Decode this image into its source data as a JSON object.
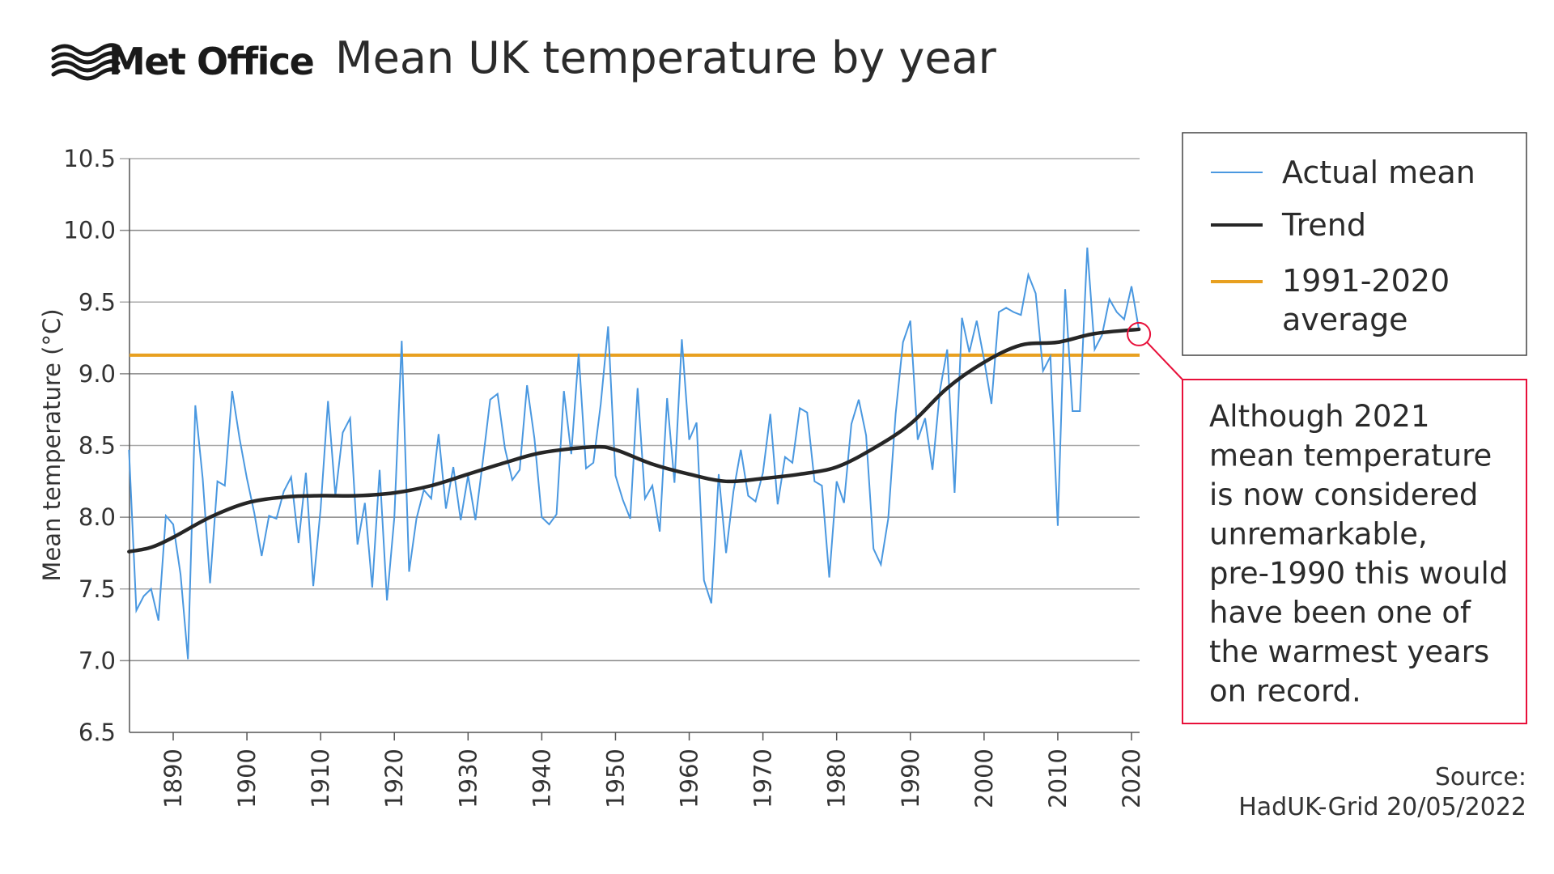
{
  "header": {
    "logo_text": "Met Office",
    "title": "Mean UK temperature by year"
  },
  "chart_data": {
    "type": "line",
    "title": "Mean UK temperature by year",
    "ylabel": "Mean temperature (°C)",
    "xlabel": "",
    "ylim": [
      6.5,
      10.5
    ],
    "xlim": [
      1884,
      2021
    ],
    "yticks": [
      "6.5",
      "7.0",
      "7.5",
      "8.0",
      "8.5",
      "9.0",
      "9.5",
      "10.0",
      "10.5"
    ],
    "xticks": [
      "1890",
      "1900",
      "1910",
      "1920",
      "1930",
      "1940",
      "1950",
      "1960",
      "1970",
      "1980",
      "1990",
      "2000",
      "2010",
      "2020"
    ],
    "grid": "horizontal",
    "legend_position": "right",
    "series": [
      {
        "name": "Actual mean",
        "color": "#4a98e0",
        "start_year": 1884,
        "values": [
          8.47,
          7.35,
          7.45,
          7.5,
          7.28,
          8.01,
          7.95,
          7.6,
          7.01,
          8.78,
          8.27,
          7.54,
          8.25,
          8.22,
          8.88,
          8.55,
          8.27,
          8.03,
          7.73,
          8.01,
          7.99,
          8.18,
          8.28,
          7.82,
          8.31,
          7.52,
          8.06,
          8.81,
          8.15,
          8.59,
          8.69,
          7.81,
          8.1,
          7.51,
          8.33,
          7.42,
          8.0,
          9.23,
          7.62,
          7.99,
          8.19,
          8.13,
          8.58,
          8.06,
          8.35,
          7.98,
          8.29,
          7.98,
          8.39,
          8.82,
          8.86,
          8.48,
          8.26,
          8.33,
          8.92,
          8.55,
          8.0,
          7.95,
          8.02,
          8.88,
          8.44,
          9.14,
          8.34,
          8.38,
          8.79,
          9.33,
          8.29,
          8.12,
          7.99,
          8.9,
          8.13,
          8.22,
          7.9,
          8.83,
          8.24,
          9.24,
          8.54,
          8.66,
          7.56,
          7.4,
          8.3,
          7.75,
          8.18,
          8.47,
          8.15,
          8.11,
          8.31,
          8.72,
          8.09,
          8.42,
          8.38,
          8.76,
          8.73,
          8.25,
          8.22,
          7.58,
          8.25,
          8.1,
          8.65,
          8.82,
          8.57,
          7.78,
          7.67,
          7.99,
          8.72,
          9.22,
          9.37,
          8.54,
          8.69,
          8.33,
          8.88,
          9.17,
          8.17,
          9.39,
          9.15,
          9.37,
          9.1,
          8.79,
          9.43,
          9.46,
          9.43,
          9.41,
          9.69,
          9.56,
          9.02,
          9.12,
          7.94,
          9.59,
          8.74,
          8.74,
          9.88,
          9.17,
          9.27,
          9.52,
          9.43,
          9.38,
          9.61,
          9.31
        ]
      },
      {
        "name": "Trend",
        "color": "#262626",
        "points": [
          [
            1884,
            7.76
          ],
          [
            1887,
            7.79
          ],
          [
            1890,
            7.86
          ],
          [
            1895,
            8.0
          ],
          [
            1900,
            8.1
          ],
          [
            1905,
            8.14
          ],
          [
            1910,
            8.15
          ],
          [
            1915,
            8.15
          ],
          [
            1920,
            8.17
          ],
          [
            1925,
            8.22
          ],
          [
            1930,
            8.3
          ],
          [
            1935,
            8.38
          ],
          [
            1940,
            8.45
          ],
          [
            1947,
            8.49
          ],
          [
            1950,
            8.47
          ],
          [
            1955,
            8.37
          ],
          [
            1960,
            8.3
          ],
          [
            1965,
            8.25
          ],
          [
            1970,
            8.27
          ],
          [
            1975,
            8.3
          ],
          [
            1980,
            8.35
          ],
          [
            1985,
            8.48
          ],
          [
            1990,
            8.65
          ],
          [
            1995,
            8.9
          ],
          [
            2000,
            9.08
          ],
          [
            2005,
            9.2
          ],
          [
            2010,
            9.22
          ],
          [
            2015,
            9.28
          ],
          [
            2021,
            9.31
          ]
        ]
      },
      {
        "name": "1991-2020 average",
        "color": "#e8a020",
        "value": 9.13
      }
    ],
    "legend": [
      {
        "label": "Actual mean",
        "color": "#4a98e0"
      },
      {
        "label": "Trend",
        "color": "#262626"
      },
      {
        "label_lines": [
          "1991-2020",
          "average"
        ],
        "color": "#e8a020"
      }
    ],
    "annotation": {
      "year": 2021,
      "value": 9.31,
      "color": "#e8103a",
      "lines": [
        "Although 2021",
        "mean temperature",
        "is now considered",
        "unremarkable,",
        "pre-1990 this would",
        "have been one of",
        "the warmest years",
        "on record."
      ]
    }
  },
  "source": {
    "lines": [
      "Source:",
      "HadUK-Grid 20/05/2022"
    ]
  }
}
